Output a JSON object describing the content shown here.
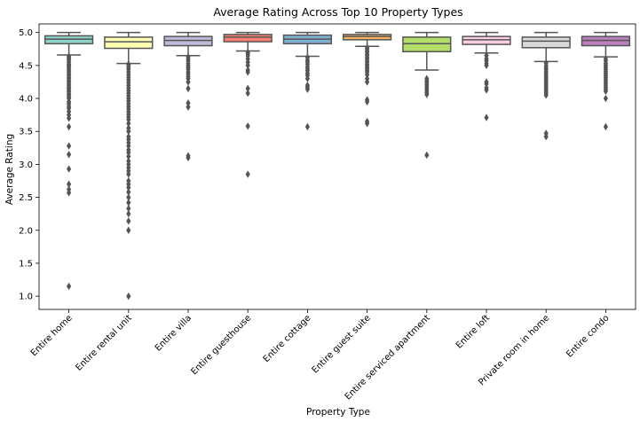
{
  "chart_data": {
    "type": "box",
    "title": "Average Rating Across Top 10 Property Types",
    "xlabel": "Property Type",
    "ylabel": "Average Rating",
    "ylim": [
      0.8,
      5.13
    ],
    "yticks": [
      1.0,
      1.5,
      2.0,
      2.5,
      3.0,
      3.5,
      4.0,
      4.5,
      5.0
    ],
    "ytick_labels": [
      "1.0",
      "1.5",
      "2.0",
      "2.5",
      "3.0",
      "3.5",
      "4.0",
      "4.5",
      "5.0"
    ],
    "grid": false,
    "categories": [
      "Entire home",
      "Entire rental unit",
      "Entire villa",
      "Entire guesthouse",
      "Entire cottage",
      "Entire guest suite",
      "Entire serviced apartment",
      "Entire loft",
      "Private room in home",
      "Entire condo"
    ],
    "boxes": [
      {
        "category": "Entire home",
        "color": "#8dd3c7",
        "whisker_low": 4.66,
        "q1": 4.83,
        "median": 4.9,
        "q3": 4.95,
        "whisker_high": 5.0,
        "outliers": [
          4.64,
          4.62,
          4.6,
          4.58,
          4.55,
          4.52,
          4.5,
          4.48,
          4.45,
          4.42,
          4.4,
          4.37,
          4.35,
          4.32,
          4.3,
          4.27,
          4.25,
          4.22,
          4.2,
          4.17,
          4.15,
          4.12,
          4.1,
          4.07,
          4.05,
          4.02,
          4.0,
          3.95,
          3.92,
          3.88,
          3.85,
          3.8,
          3.75,
          3.7,
          3.57,
          3.28,
          3.15,
          2.93,
          2.7,
          2.62,
          2.57,
          1.15
        ]
      },
      {
        "category": "Entire rental unit",
        "color": "#ffffb3",
        "whisker_low": 4.53,
        "q1": 4.76,
        "median": 4.86,
        "q3": 4.93,
        "whisker_high": 5.0,
        "outliers": [
          4.52,
          4.5,
          4.47,
          4.44,
          4.4,
          4.36,
          4.32,
          4.28,
          4.24,
          4.2,
          4.16,
          4.12,
          4.08,
          4.04,
          4.0,
          3.96,
          3.92,
          3.88,
          3.84,
          3.8,
          3.76,
          3.72,
          3.68,
          3.62,
          3.55,
          3.5,
          3.42,
          3.38,
          3.33,
          3.28,
          3.22,
          3.18,
          3.12,
          3.05,
          3.0,
          2.95,
          2.9,
          2.85,
          2.75,
          2.7,
          2.65,
          2.58,
          2.5,
          2.42,
          2.33,
          2.25,
          2.14,
          2.0,
          1.0
        ]
      },
      {
        "category": "Entire villa",
        "color": "#bebada",
        "whisker_low": 4.65,
        "q1": 4.8,
        "median": 4.88,
        "q3": 4.94,
        "whisker_high": 5.0,
        "outliers": [
          4.63,
          4.6,
          4.57,
          4.53,
          4.5,
          4.47,
          4.44,
          4.4,
          4.37,
          4.33,
          4.3,
          4.25,
          4.15,
          3.93,
          3.87,
          3.13,
          3.1
        ]
      },
      {
        "category": "Entire guesthouse",
        "color": "#fb8072",
        "whisker_low": 4.72,
        "q1": 4.86,
        "median": 4.93,
        "q3": 4.97,
        "whisker_high": 5.0,
        "outliers": [
          4.7,
          4.68,
          4.65,
          4.6,
          4.55,
          4.5,
          4.43,
          4.4,
          4.15,
          4.08,
          3.58,
          2.85
        ]
      },
      {
        "category": "Entire cottage",
        "color": "#80b1d3",
        "whisker_low": 4.64,
        "q1": 4.83,
        "median": 4.9,
        "q3": 4.96,
        "whisker_high": 5.0,
        "outliers": [
          4.62,
          4.58,
          4.55,
          4.52,
          4.48,
          4.45,
          4.42,
          4.38,
          4.35,
          4.3,
          4.2,
          4.17,
          4.14,
          3.57
        ]
      },
      {
        "category": "Entire guest suite",
        "color": "#fdb462",
        "whisker_low": 4.79,
        "q1": 4.89,
        "median": 4.94,
        "q3": 4.97,
        "whisker_high": 5.0,
        "outliers": [
          4.77,
          4.75,
          4.72,
          4.7,
          4.67,
          4.65,
          4.62,
          4.6,
          4.57,
          4.55,
          4.52,
          4.5,
          4.47,
          4.45,
          4.42,
          4.4,
          4.36,
          4.3,
          4.25,
          3.98,
          3.95,
          3.65,
          3.62
        ]
      },
      {
        "category": "Entire serviced apartment",
        "color": "#b3de69",
        "whisker_low": 4.43,
        "q1": 4.71,
        "median": 4.83,
        "q3": 4.93,
        "whisker_high": 5.0,
        "outliers": [
          4.3,
          4.27,
          4.24,
          4.21,
          4.18,
          4.15,
          4.12,
          4.09,
          4.06,
          3.14
        ]
      },
      {
        "category": "Entire loft",
        "color": "#fccde5",
        "whisker_low": 4.69,
        "q1": 4.82,
        "median": 4.89,
        "q3": 4.94,
        "whisker_high": 5.0,
        "outliers": [
          4.65,
          4.6,
          4.57,
          4.53,
          4.5,
          4.25,
          4.22,
          4.16,
          4.13,
          3.71
        ]
      },
      {
        "category": "Private room in home",
        "color": "#d9d9d9",
        "whisker_low": 4.56,
        "q1": 4.77,
        "median": 4.87,
        "q3": 4.93,
        "whisker_high": 5.0,
        "outliers": [
          4.54,
          4.5,
          4.47,
          4.44,
          4.41,
          4.38,
          4.35,
          4.32,
          4.29,
          4.26,
          4.23,
          4.2,
          4.17,
          4.14,
          4.11,
          4.08,
          4.05,
          3.47,
          3.42
        ]
      },
      {
        "category": "Entire condo",
        "color": "#bc80bd",
        "whisker_low": 4.63,
        "q1": 4.8,
        "median": 4.88,
        "q3": 4.94,
        "whisker_high": 5.0,
        "outliers": [
          4.6,
          4.57,
          4.53,
          4.5,
          4.47,
          4.44,
          4.41,
          4.38,
          4.35,
          4.32,
          4.29,
          4.26,
          4.23,
          4.2,
          4.17,
          4.14,
          4.11,
          4.0,
          3.57
        ]
      }
    ]
  }
}
